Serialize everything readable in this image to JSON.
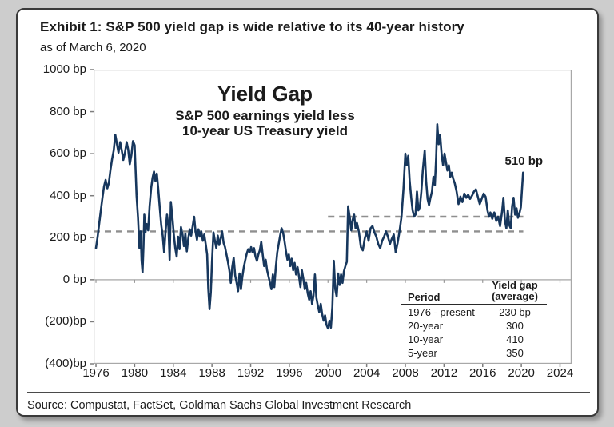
{
  "exhibit": {
    "title": "Exhibit 1: S&P 500 yield gap is wide relative to its 40-year history",
    "subtitle": "as of March 6, 2020",
    "source": "Source: Compustat, FactSet, Goldman Sachs Global Investment Research"
  },
  "chart_data": {
    "type": "line",
    "title": "Yield Gap",
    "subtitle_line1": "S&P 500 earnings yield less",
    "subtitle_line2": "10-year US Treasury yield",
    "unit": "bp",
    "xlim": [
      1975.75,
      2025.2
    ],
    "ylim": [
      -400,
      1000
    ],
    "grid": "zero-line-only",
    "xticks": [
      1976,
      1980,
      1984,
      1988,
      1992,
      1996,
      2000,
      2004,
      2008,
      2012,
      2016,
      2020,
      2024
    ],
    "yticks": [
      1000,
      800,
      600,
      400,
      200,
      0,
      -200,
      -400
    ],
    "ytick_labels": [
      "1000 bp",
      "800 bp",
      "600 bp",
      "400 bp",
      "200 bp",
      "0 bp",
      "(200)bp",
      "(400)bp"
    ],
    "line_color": "#17375d",
    "reference_line_color": "#8f8f8f",
    "reference_lines": [
      {
        "name": "average-1976-present",
        "value": 230,
        "x_start": 1975.75,
        "x_end": 2020.2,
        "style": "dashed"
      },
      {
        "name": "average-20-year",
        "value": 300,
        "x_start": 2000.0,
        "x_end": 2020.2,
        "style": "dashed"
      }
    ],
    "annotation": {
      "text": "510 bp",
      "x": 2018.3,
      "y": 560
    },
    "table": {
      "col1_header": "Period",
      "col2_header_line1": "Yield gap",
      "col2_header_line2": "(average)",
      "rows": [
        {
          "period": "1976 - present",
          "value": "230 bp"
        },
        {
          "period": "20-year",
          "value": "300"
        },
        {
          "period": "10-year",
          "value": "410"
        },
        {
          "period": "5-year",
          "value": "350"
        }
      ]
    },
    "series": [
      {
        "name": "S&P 500 yield gap (bp)",
        "points": [
          [
            1976.0,
            150
          ],
          [
            1976.17,
            205
          ],
          [
            1976.33,
            265
          ],
          [
            1976.5,
            330
          ],
          [
            1976.67,
            390
          ],
          [
            1976.83,
            445
          ],
          [
            1977.0,
            475
          ],
          [
            1977.17,
            435
          ],
          [
            1977.33,
            460
          ],
          [
            1977.5,
            525
          ],
          [
            1977.67,
            575
          ],
          [
            1977.83,
            615
          ],
          [
            1978.0,
            690
          ],
          [
            1978.17,
            645
          ],
          [
            1978.33,
            605
          ],
          [
            1978.5,
            655
          ],
          [
            1978.67,
            615
          ],
          [
            1978.83,
            570
          ],
          [
            1979.0,
            605
          ],
          [
            1979.17,
            655
          ],
          [
            1979.33,
            620
          ],
          [
            1979.5,
            550
          ],
          [
            1979.67,
            595
          ],
          [
            1979.83,
            660
          ],
          [
            1980.0,
            640
          ],
          [
            1980.2,
            400
          ],
          [
            1980.35,
            295
          ],
          [
            1980.5,
            150
          ],
          [
            1980.62,
            230
          ],
          [
            1980.72,
            90
          ],
          [
            1980.82,
            35
          ],
          [
            1980.92,
            160
          ],
          [
            1981.0,
            310
          ],
          [
            1981.12,
            225
          ],
          [
            1981.25,
            265
          ],
          [
            1981.4,
            235
          ],
          [
            1981.55,
            350
          ],
          [
            1981.7,
            435
          ],
          [
            1981.85,
            485
          ],
          [
            1982.0,
            515
          ],
          [
            1982.15,
            470
          ],
          [
            1982.3,
            505
          ],
          [
            1982.45,
            430
          ],
          [
            1982.6,
            345
          ],
          [
            1982.75,
            260
          ],
          [
            1982.9,
            210
          ],
          [
            1983.05,
            130
          ],
          [
            1983.2,
            230
          ],
          [
            1983.35,
            310
          ],
          [
            1983.5,
            250
          ],
          [
            1983.62,
            95
          ],
          [
            1983.75,
            370
          ],
          [
            1983.9,
            300
          ],
          [
            1984.05,
            215
          ],
          [
            1984.2,
            150
          ],
          [
            1984.35,
            110
          ],
          [
            1984.5,
            205
          ],
          [
            1984.65,
            145
          ],
          [
            1984.8,
            250
          ],
          [
            1984.95,
            215
          ],
          [
            1985.1,
            160
          ],
          [
            1985.25,
            220
          ],
          [
            1985.4,
            135
          ],
          [
            1985.55,
            195
          ],
          [
            1985.7,
            240
          ],
          [
            1985.85,
            210
          ],
          [
            1986.0,
            255
          ],
          [
            1986.15,
            300
          ],
          [
            1986.3,
            230
          ],
          [
            1986.45,
            190
          ],
          [
            1986.6,
            240
          ],
          [
            1986.75,
            205
          ],
          [
            1986.9,
            230
          ],
          [
            1987.05,
            185
          ],
          [
            1987.2,
            215
          ],
          [
            1987.35,
            170
          ],
          [
            1987.5,
            120
          ],
          [
            1987.62,
            -40
          ],
          [
            1987.75,
            -140
          ],
          [
            1987.88,
            -60
          ],
          [
            1988.0,
            80
          ],
          [
            1988.15,
            225
          ],
          [
            1988.3,
            185
          ],
          [
            1988.45,
            150
          ],
          [
            1988.6,
            210
          ],
          [
            1988.75,
            165
          ],
          [
            1988.9,
            195
          ],
          [
            1989.05,
            230
          ],
          [
            1989.2,
            175
          ],
          [
            1989.35,
            155
          ],
          [
            1989.5,
            120
          ],
          [
            1989.65,
            85
          ],
          [
            1989.8,
            45
          ],
          [
            1989.95,
            -15
          ],
          [
            1990.1,
            60
          ],
          [
            1990.25,
            105
          ],
          [
            1990.4,
            20
          ],
          [
            1990.55,
            -15
          ],
          [
            1990.7,
            -55
          ],
          [
            1990.85,
            30
          ],
          [
            1991.0,
            -45
          ],
          [
            1991.15,
            15
          ],
          [
            1991.3,
            60
          ],
          [
            1991.45,
            95
          ],
          [
            1991.6,
            125
          ],
          [
            1991.75,
            145
          ],
          [
            1991.9,
            130
          ],
          [
            1992.05,
            155
          ],
          [
            1992.2,
            130
          ],
          [
            1992.35,
            150
          ],
          [
            1992.5,
            110
          ],
          [
            1992.65,
            90
          ],
          [
            1992.8,
            120
          ],
          [
            1992.95,
            140
          ],
          [
            1993.1,
            180
          ],
          [
            1993.25,
            120
          ],
          [
            1993.4,
            65
          ],
          [
            1993.55,
            95
          ],
          [
            1993.7,
            45
          ],
          [
            1993.85,
            15
          ],
          [
            1994.0,
            -15
          ],
          [
            1994.15,
            -45
          ],
          [
            1994.3,
            25
          ],
          [
            1994.45,
            -35
          ],
          [
            1994.6,
            60
          ],
          [
            1994.75,
            130
          ],
          [
            1994.9,
            170
          ],
          [
            1995.05,
            210
          ],
          [
            1995.2,
            245
          ],
          [
            1995.35,
            225
          ],
          [
            1995.5,
            185
          ],
          [
            1995.65,
            135
          ],
          [
            1995.8,
            95
          ],
          [
            1995.95,
            120
          ],
          [
            1996.1,
            65
          ],
          [
            1996.25,
            100
          ],
          [
            1996.4,
            45
          ],
          [
            1996.55,
            80
          ],
          [
            1996.7,
            25
          ],
          [
            1996.85,
            60
          ],
          [
            1997.0,
            15
          ],
          [
            1997.15,
            -35
          ],
          [
            1997.3,
            45
          ],
          [
            1997.45,
            5
          ],
          [
            1997.6,
            -45
          ],
          [
            1997.75,
            -15
          ],
          [
            1997.9,
            -65
          ],
          [
            1998.05,
            -95
          ],
          [
            1998.2,
            -55
          ],
          [
            1998.35,
            -115
          ],
          [
            1998.5,
            -75
          ],
          [
            1998.65,
            25
          ],
          [
            1998.8,
            -85
          ],
          [
            1998.95,
            -125
          ],
          [
            1999.1,
            -155
          ],
          [
            1999.25,
            -115
          ],
          [
            1999.4,
            -165
          ],
          [
            1999.55,
            -195
          ],
          [
            1999.7,
            -170
          ],
          [
            1999.85,
            -215
          ],
          [
            2000.0,
            -232
          ],
          [
            2000.15,
            -195
          ],
          [
            2000.3,
            -228
          ],
          [
            2000.45,
            -130
          ],
          [
            2000.6,
            90
          ],
          [
            2000.75,
            -45
          ],
          [
            2000.9,
            -80
          ],
          [
            2001.05,
            30
          ],
          [
            2001.2,
            -25
          ],
          [
            2001.35,
            25
          ],
          [
            2001.5,
            -15
          ],
          [
            2001.65,
            40
          ],
          [
            2001.8,
            65
          ],
          [
            2001.95,
            85
          ],
          [
            2002.08,
            350
          ],
          [
            2002.25,
            295
          ],
          [
            2002.4,
            235
          ],
          [
            2002.55,
            285
          ],
          [
            2002.7,
            310
          ],
          [
            2002.85,
            245
          ],
          [
            2003.0,
            270
          ],
          [
            2003.2,
            225
          ],
          [
            2003.4,
            155
          ],
          [
            2003.6,
            140
          ],
          [
            2003.8,
            195
          ],
          [
            2004.0,
            230
          ],
          [
            2004.2,
            185
          ],
          [
            2004.4,
            245
          ],
          [
            2004.6,
            255
          ],
          [
            2004.8,
            225
          ],
          [
            2005.0,
            205
          ],
          [
            2005.2,
            170
          ],
          [
            2005.4,
            150
          ],
          [
            2005.6,
            185
          ],
          [
            2005.8,
            205
          ],
          [
            2006.0,
            230
          ],
          [
            2006.2,
            205
          ],
          [
            2006.4,
            170
          ],
          [
            2006.6,
            195
          ],
          [
            2006.8,
            215
          ],
          [
            2007.0,
            130
          ],
          [
            2007.2,
            175
          ],
          [
            2007.4,
            230
          ],
          [
            2007.6,
            300
          ],
          [
            2007.8,
            430
          ],
          [
            2008.0,
            600
          ],
          [
            2008.15,
            545
          ],
          [
            2008.3,
            590
          ],
          [
            2008.45,
            470
          ],
          [
            2008.6,
            390
          ],
          [
            2008.75,
            330
          ],
          [
            2008.9,
            300
          ],
          [
            2009.05,
            310
          ],
          [
            2009.2,
            420
          ],
          [
            2009.35,
            330
          ],
          [
            2009.5,
            345
          ],
          [
            2009.65,
            420
          ],
          [
            2009.8,
            520
          ],
          [
            2010.0,
            615
          ],
          [
            2010.15,
            470
          ],
          [
            2010.3,
            385
          ],
          [
            2010.45,
            355
          ],
          [
            2010.6,
            390
          ],
          [
            2010.75,
            420
          ],
          [
            2010.9,
            490
          ],
          [
            2011.05,
            450
          ],
          [
            2011.18,
            580
          ],
          [
            2011.3,
            740
          ],
          [
            2011.45,
            645
          ],
          [
            2011.6,
            690
          ],
          [
            2011.75,
            600
          ],
          [
            2011.9,
            545
          ],
          [
            2012.05,
            600
          ],
          [
            2012.2,
            560
          ],
          [
            2012.35,
            520
          ],
          [
            2012.5,
            545
          ],
          [
            2012.65,
            490
          ],
          [
            2012.8,
            510
          ],
          [
            2012.95,
            480
          ],
          [
            2013.1,
            460
          ],
          [
            2013.3,
            420
          ],
          [
            2013.5,
            360
          ],
          [
            2013.7,
            395
          ],
          [
            2013.9,
            370
          ],
          [
            2014.1,
            410
          ],
          [
            2014.3,
            390
          ],
          [
            2014.5,
            405
          ],
          [
            2014.7,
            385
          ],
          [
            2014.9,
            400
          ],
          [
            2015.1,
            420
          ],
          [
            2015.3,
            430
          ],
          [
            2015.5,
            395
          ],
          [
            2015.7,
            360
          ],
          [
            2015.9,
            385
          ],
          [
            2016.1,
            410
          ],
          [
            2016.3,
            395
          ],
          [
            2016.5,
            330
          ],
          [
            2016.65,
            300
          ],
          [
            2016.8,
            320
          ],
          [
            2017.0,
            290
          ],
          [
            2017.2,
            320
          ],
          [
            2017.4,
            280
          ],
          [
            2017.6,
            300
          ],
          [
            2017.8,
            255
          ],
          [
            2018.0,
            320
          ],
          [
            2018.15,
            390
          ],
          [
            2018.3,
            280
          ],
          [
            2018.45,
            245
          ],
          [
            2018.6,
            330
          ],
          [
            2018.75,
            260
          ],
          [
            2018.9,
            245
          ],
          [
            2019.05,
            350
          ],
          [
            2019.2,
            390
          ],
          [
            2019.35,
            310
          ],
          [
            2019.5,
            340
          ],
          [
            2019.65,
            295
          ],
          [
            2019.8,
            315
          ],
          [
            2019.95,
            345
          ],
          [
            2020.18,
            510
          ]
        ]
      }
    ]
  }
}
